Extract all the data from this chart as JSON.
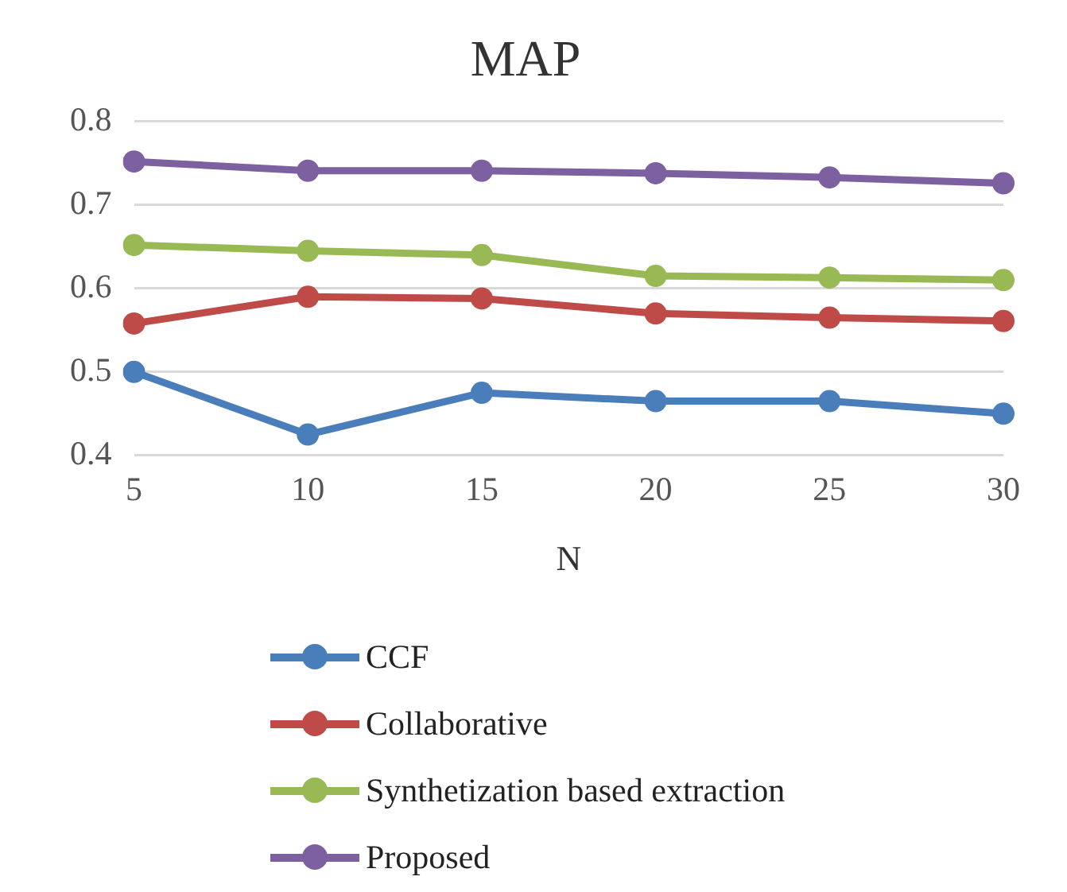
{
  "chart_data": {
    "type": "line",
    "title": "MAP",
    "xlabel": "N",
    "categories": [
      "5",
      "10",
      "15",
      "20",
      "25",
      "30"
    ],
    "series": [
      {
        "name": "CCF",
        "color": "#4a7ebb",
        "values": [
          0.5,
          0.425,
          0.475,
          0.465,
          0.465,
          0.45
        ]
      },
      {
        "name": "Collaborative",
        "color": "#be4b48",
        "values": [
          0.558,
          0.59,
          0.588,
          0.57,
          0.565,
          0.561
        ]
      },
      {
        "name": "Synthetization based extraction",
        "color": "#98b954",
        "values": [
          0.652,
          0.645,
          0.64,
          0.615,
          0.613,
          0.61
        ]
      },
      {
        "name": "Proposed",
        "color": "#7d60a0",
        "values": [
          0.752,
          0.741,
          0.741,
          0.738,
          0.733,
          0.726
        ]
      }
    ],
    "ylim": [
      0.4,
      0.8
    ],
    "yticks": [
      0.4,
      0.5,
      0.6,
      0.7,
      0.8
    ],
    "grid": "y",
    "legend": "bottom",
    "marker": "circle",
    "line_style": "solid"
  }
}
